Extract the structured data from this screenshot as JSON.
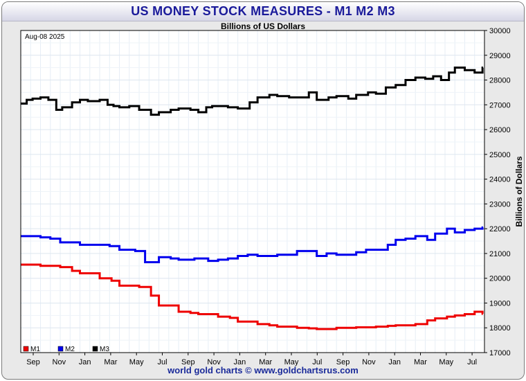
{
  "header": {
    "title": "US MONEY STOCK MEASURES - M1 M2 M3",
    "subtitle": "Billions of US Dollars",
    "footer": "world gold charts © www.goldchartsrus.com"
  },
  "chart_data": {
    "type": "line",
    "date_label": "Aug-08  2025",
    "ylabel": "Billions of Dollars",
    "ylim": [
      17000,
      30000
    ],
    "y_ticks": [
      "17000",
      "18000",
      "19000",
      "20000",
      "21000",
      "22000",
      "23000",
      "24000",
      "25000",
      "26000",
      "27000",
      "28000",
      "29000",
      "30000"
    ],
    "x_ticks": [
      "Sep",
      "Nov",
      "Jan",
      "Mar",
      "May",
      "Jul",
      "Sep",
      "Nov",
      "Jan",
      "Mar",
      "May",
      "Jul",
      "Sep",
      "Nov",
      "Jan",
      "Mar",
      "May",
      "Jul"
    ],
    "x_range": [
      0,
      23.5
    ],
    "grid": true,
    "legend": "bottom-left",
    "series": [
      {
        "name": "M1",
        "color": "#ee0000",
        "x": [
          0,
          1,
          2,
          2.6,
          3,
          4,
          4.6,
          5,
          6,
          6.6,
          7,
          8,
          8.6,
          9,
          10,
          10.6,
          11,
          12,
          12.6,
          13,
          14,
          14.6,
          15,
          16,
          16.6,
          17,
          18,
          18.6,
          19,
          20,
          20.6,
          21,
          21.6,
          22,
          22.5,
          23,
          23.4
        ],
        "values": [
          20550,
          20500,
          20450,
          20300,
          20200,
          20000,
          19900,
          19700,
          19650,
          19300,
          18900,
          18650,
          18600,
          18550,
          18450,
          18400,
          18250,
          18150,
          18100,
          18050,
          18000,
          17980,
          17950,
          18000,
          18000,
          18020,
          18050,
          18080,
          18100,
          18150,
          18300,
          18380,
          18450,
          18500,
          18550,
          18650,
          18570
        ]
      },
      {
        "name": "M2",
        "color": "#0000ee",
        "x": [
          0,
          1,
          1.5,
          2,
          3,
          4,
          4.5,
          5,
          5.8,
          6.3,
          7,
          7.6,
          8,
          8.8,
          9.5,
          10,
          10.5,
          11,
          11.5,
          12,
          12.5,
          13,
          14,
          15,
          15.5,
          16,
          16.5,
          17,
          17.5,
          18,
          18.6,
          19,
          19.5,
          20,
          20.6,
          21,
          21.6,
          22,
          22.5,
          23,
          23.4
        ],
        "values": [
          21700,
          21650,
          21600,
          21450,
          21350,
          21350,
          21300,
          21150,
          21100,
          20650,
          20850,
          20800,
          20750,
          20800,
          20700,
          20750,
          20800,
          20900,
          20950,
          20900,
          20900,
          20950,
          21100,
          20900,
          21000,
          20950,
          20950,
          21050,
          21150,
          21150,
          21350,
          21550,
          21600,
          21700,
          21550,
          21800,
          22000,
          21850,
          21950,
          22000,
          22050
        ]
      },
      {
        "name": "M3",
        "color": "#000000",
        "x": [
          0,
          0.3,
          0.6,
          1,
          1.4,
          1.8,
          2.1,
          2.6,
          3,
          3.4,
          4,
          4.4,
          4.7,
          5,
          5.5,
          6,
          6.6,
          7,
          7.6,
          8,
          8.6,
          9,
          9.4,
          9.7,
          10,
          10.5,
          11,
          11.6,
          12,
          12.6,
          13,
          13.6,
          14,
          14.6,
          15,
          15.6,
          16,
          16.6,
          17,
          17.6,
          18,
          18.5,
          19,
          19.5,
          20,
          20.5,
          20.9,
          21.3,
          21.7,
          22,
          22.5,
          23,
          23.4
        ],
        "values": [
          27050,
          27200,
          27250,
          27300,
          27200,
          26800,
          26900,
          27100,
          27200,
          27150,
          27200,
          27000,
          26950,
          26900,
          26950,
          26800,
          26600,
          26700,
          26800,
          26850,
          26800,
          26700,
          26900,
          26950,
          26950,
          26900,
          26850,
          27100,
          27300,
          27400,
          27350,
          27300,
          27300,
          27500,
          27200,
          27300,
          27350,
          27250,
          27400,
          27500,
          27450,
          27700,
          27800,
          28000,
          28100,
          28050,
          28150,
          28000,
          28300,
          28500,
          28400,
          28300,
          28500
        ]
      }
    ]
  }
}
